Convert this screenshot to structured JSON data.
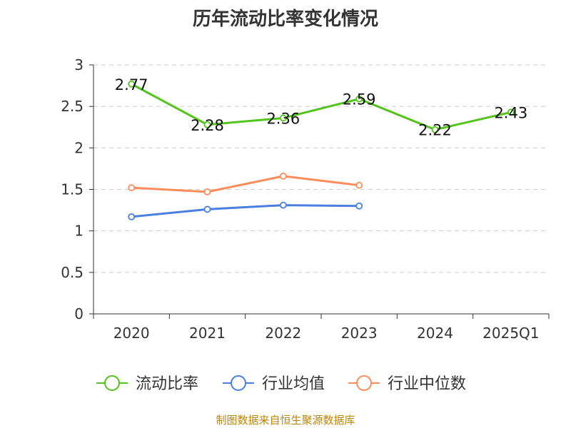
{
  "chart_data": {
    "type": "line",
    "title": "历年流动比率变化情况",
    "categories": [
      "2020",
      "2021",
      "2022",
      "2023",
      "2024",
      "2025Q1"
    ],
    "ylim": [
      0,
      3
    ],
    "yticks": [
      "0",
      "0.5",
      "1",
      "1.5",
      "2",
      "2.5",
      "3"
    ],
    "grid": true,
    "legend_position": "bottom",
    "series": [
      {
        "name": "流动比率",
        "color": "#52c41a",
        "values": [
          2.77,
          2.28,
          2.36,
          2.59,
          2.22,
          2.43
        ],
        "labels": [
          "2.77",
          "2.28",
          "2.36",
          "2.59",
          "2.22",
          "2.43"
        ]
      },
      {
        "name": "行业均值",
        "color": "#4a7fe0",
        "values": [
          1.17,
          1.26,
          1.31,
          1.3,
          null,
          null
        ]
      },
      {
        "name": "行业中位数",
        "color": "#ff8c5a",
        "values": [
          1.52,
          1.47,
          1.66,
          1.55,
          null,
          null
        ]
      }
    ]
  },
  "source_note": "制图数据来自恒生聚源数据库"
}
